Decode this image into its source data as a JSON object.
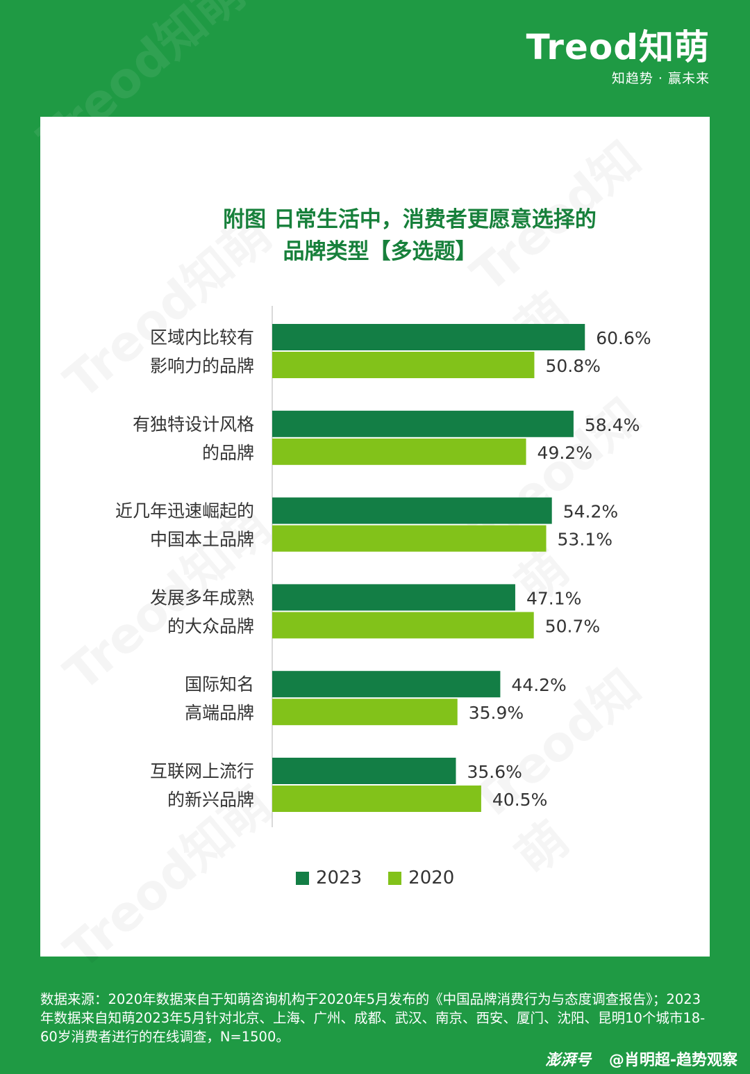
{
  "brand": {
    "logo_text": "Treod知萌",
    "tagline": "知趋势 · 赢未来"
  },
  "watermark_text": "Treod知萌",
  "colors": {
    "background": "#1f9a44",
    "series_2023": "#137e45",
    "series_2020": "#82c21a",
    "title": "#17803b"
  },
  "chart_data": {
    "type": "bar",
    "orientation": "horizontal",
    "title_line1": "附图 日常生活中，消费者更愿意选择的",
    "title_line2": "品牌类型【多选题】",
    "categories": [
      [
        "区域内比较有",
        "影响力的品牌"
      ],
      [
        "有独特设计风格",
        "的品牌"
      ],
      [
        "近几年迅速崛起的",
        "中国本土品牌"
      ],
      [
        "发展多年成熟",
        "的大众品牌"
      ],
      [
        "国际知名",
        "高端品牌"
      ],
      [
        "互联网上流行",
        "的新兴品牌"
      ]
    ],
    "series": [
      {
        "name": "2023",
        "values": [
          60.6,
          58.4,
          54.2,
          47.1,
          44.2,
          35.6
        ],
        "labels": [
          "60.6%",
          "58.4%",
          "54.2%",
          "47.1%",
          "44.2%",
          "35.6%"
        ]
      },
      {
        "name": "2020",
        "values": [
          50.8,
          49.2,
          53.1,
          50.7,
          35.9,
          40.5
        ],
        "labels": [
          "50.8%",
          "49.2%",
          "53.1%",
          "50.7%",
          "35.9%",
          "40.5%"
        ]
      }
    ],
    "unit": "%",
    "legend_position": "bottom",
    "grid": false
  },
  "legend": {
    "item1": "2023",
    "item2": "2020"
  },
  "footer": {
    "source_note": "数据来源：2020年数据来自于知萌咨询机构于2020年5月发布的《中国品牌消费行为与态度调查报告》；2023年数据来自知萌2023年5月针对北京、上海、广州、成都、武汉、南京、西安、厦门、沈阳、昆明10个城市18-60岁消费者进行的在线调查，N=1500。"
  },
  "credit": {
    "platform": "澎湃号",
    "author": "@肖明超-趋势观察"
  }
}
